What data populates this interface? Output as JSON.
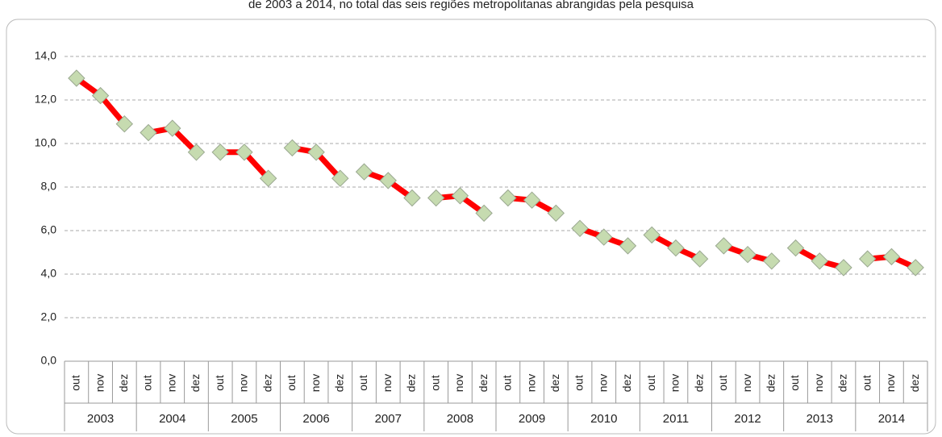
{
  "chart_data": {
    "type": "line",
    "title": "de 2003 a 2014, no total das seis regiões metropolitanas abrangidas pela pesquisa",
    "groups": [
      "2003",
      "2004",
      "2005",
      "2006",
      "2007",
      "2008",
      "2009",
      "2010",
      "2011",
      "2012",
      "2013",
      "2014"
    ],
    "categories": [
      "out",
      "nov",
      "dez",
      "out",
      "nov",
      "dez",
      "out",
      "nov",
      "dez",
      "out",
      "nov",
      "dez",
      "out",
      "nov",
      "dez",
      "out",
      "nov",
      "dez",
      "out",
      "nov",
      "dez",
      "out",
      "nov",
      "dez",
      "out",
      "nov",
      "dez",
      "out",
      "nov",
      "dez",
      "out",
      "nov",
      "dez",
      "out",
      "nov",
      "dez"
    ],
    "series": [
      {
        "color": "#ff0000",
        "marker_color": "#c6dbb0",
        "values": [
          13.0,
          12.2,
          10.9,
          10.5,
          10.7,
          9.6,
          9.6,
          9.6,
          8.4,
          9.8,
          9.6,
          8.4,
          8.7,
          8.3,
          7.5,
          7.5,
          7.6,
          6.8,
          7.5,
          7.4,
          6.8,
          6.1,
          5.7,
          5.3,
          5.8,
          5.2,
          4.7,
          5.3,
          4.9,
          4.6,
          5.2,
          4.6,
          4.3,
          4.7,
          4.8,
          4.3
        ]
      }
    ],
    "ylim": [
      0,
      14
    ],
    "yticks": [
      {
        "value": 0,
        "label": "0,0"
      },
      {
        "value": 2,
        "label": "2,0"
      },
      {
        "value": 4,
        "label": "4,0"
      },
      {
        "value": 6,
        "label": "6,0"
      },
      {
        "value": 8,
        "label": "8,0"
      },
      {
        "value": 10,
        "label": "10,0"
      },
      {
        "value": 12,
        "label": "12,0"
      },
      {
        "value": 14,
        "label": "14,0"
      }
    ],
    "grid": true
  }
}
